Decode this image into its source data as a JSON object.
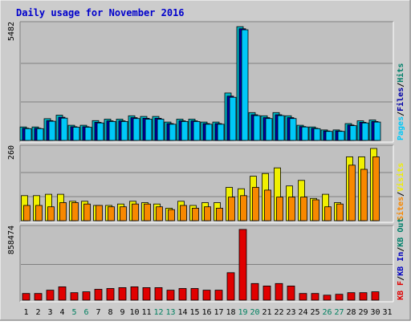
{
  "chart_data": {
    "type": "bar",
    "title": "Daily usage for November 2016",
    "colors": {
      "background": "#cccccc",
      "plot": "#c0c0c0",
      "title": "#0000cc",
      "hits": "#00b8c8",
      "files": "#0000a8",
      "pages": "#00c8f8",
      "visits": "#f0f000",
      "sites": "#f88800",
      "kb_out": "#00806a",
      "kb_in": "#0000c0",
      "kb_f": "#e00000",
      "weekend_label": "#008060",
      "weekday_label": "#000000"
    },
    "categories": [
      "1",
      "2",
      "3",
      "4",
      "5",
      "6",
      "7",
      "8",
      "9",
      "10",
      "11",
      "12",
      "13",
      "14",
      "15",
      "16",
      "17",
      "18",
      "19",
      "20",
      "21",
      "22",
      "23",
      "24",
      "25",
      "26",
      "27",
      "28",
      "29",
      "30",
      "31"
    ],
    "weekend_days": [
      "5",
      "6",
      "12",
      "13",
      "19",
      "20",
      "26",
      "27"
    ],
    "panels": [
      {
        "id": "top",
        "max_label": "5482",
        "ylim": [
          0,
          5482
        ],
        "legend": [
          {
            "text": "Pages",
            "color": "#00c8f8"
          },
          {
            "text": "/",
            "color": "#000000"
          },
          {
            "text": "Files",
            "color": "#0000a8"
          },
          {
            "text": "/",
            "color": "#000000"
          },
          {
            "text": "Hits",
            "color": "#00806a"
          }
        ],
        "series": [
          {
            "name": "Hits",
            "color": "#00b8c8",
            "values": [
              640,
              640,
              1030,
              1200,
              720,
              720,
              940,
              1010,
              1010,
              1170,
              1140,
              1140,
              870,
              1010,
              1010,
              870,
              870,
              2250,
              5400,
              1320,
              1170,
              1320,
              1170,
              720,
              640,
              500,
              500,
              800,
              930,
              970,
              0
            ]
          },
          {
            "name": "Files",
            "color": "#0000a8",
            "values": [
              580,
              580,
              940,
              1100,
              650,
              650,
              860,
              930,
              930,
              1080,
              1050,
              1050,
              800,
              930,
              930,
              800,
              800,
              2100,
              5300,
              1220,
              1080,
              1220,
              1080,
              660,
              580,
              450,
              450,
              730,
              860,
              900,
              0
            ]
          },
          {
            "name": "Pages",
            "color": "#00c8f8",
            "values": [
              560,
              560,
              910,
              1060,
              630,
              630,
              830,
              900,
              900,
              1040,
              1010,
              1010,
              770,
              900,
              900,
              770,
              770,
              2050,
              5250,
              1180,
              1040,
              1180,
              1040,
              640,
              560,
              430,
              430,
              700,
              830,
              870,
              0
            ]
          }
        ]
      },
      {
        "id": "middle",
        "max_label": "260",
        "ylim": [
          0,
          260
        ],
        "legend": [
          {
            "text": "Sites",
            "color": "#f88800"
          },
          {
            "text": "/",
            "color": "#000000"
          },
          {
            "text": "Visits",
            "color": "#f0f000"
          }
        ],
        "series": [
          {
            "name": "Visits",
            "color": "#f0f000",
            "values": [
              90,
              90,
              95,
              95,
              70,
              70,
              55,
              55,
              60,
              70,
              65,
              60,
              45,
              70,
              55,
              65,
              65,
              120,
              115,
              160,
              170,
              190,
              125,
              145,
              80,
              95,
              65,
              230,
              230,
              260,
              0
            ]
          },
          {
            "name": "Sites",
            "color": "#f88800",
            "values": [
              55,
              55,
              50,
              65,
              65,
              60,
              55,
              50,
              50,
              60,
              60,
              50,
              40,
              55,
              45,
              50,
              45,
              85,
              90,
              120,
              110,
              85,
              85,
              85,
              75,
              50,
              60,
              200,
              185,
              230,
              0
            ]
          }
        ]
      },
      {
        "id": "bottom",
        "max_label": "858474",
        "ylim": [
          0,
          858474
        ],
        "legend": [
          {
            "text": "KB F",
            "color": "#e00000"
          },
          {
            "text": "/",
            "color": "#000000"
          },
          {
            "text": "KB In",
            "color": "#0000c0"
          },
          {
            "text": "/",
            "color": "#000000"
          },
          {
            "text": "KB Out",
            "color": "#00806a"
          }
        ],
        "series": [
          {
            "name": "KB F",
            "color": "#e00000",
            "values": [
              80000,
              80000,
              120000,
              160000,
              90000,
              100000,
              130000,
              140000,
              150000,
              160000,
              150000,
              150000,
              120000,
              140000,
              140000,
              120000,
              120000,
              330000,
              850000,
              200000,
              170000,
              200000,
              170000,
              80000,
              80000,
              60000,
              70000,
              90000,
              90000,
              100000,
              0
            ]
          }
        ]
      }
    ]
  }
}
